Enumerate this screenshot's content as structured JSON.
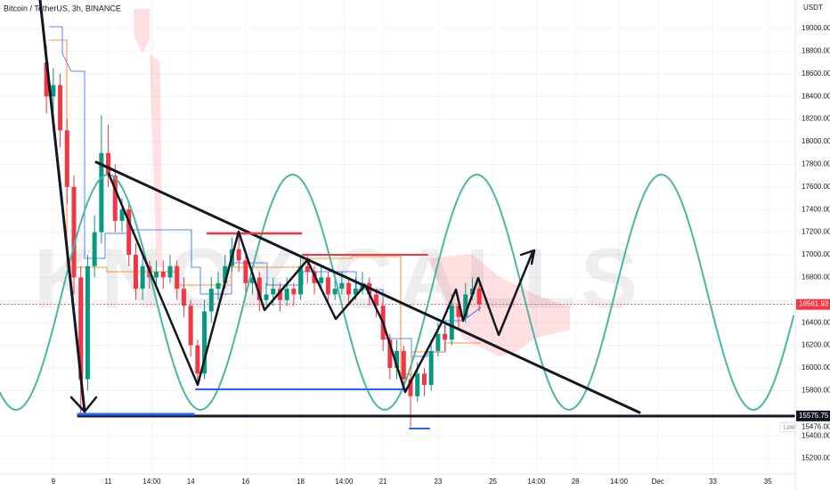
{
  "chart_data": {
    "type": "candlestick",
    "title": "Bitcoin / TetherUS, 3h, BINANCE",
    "watermark": "KNOX CALLS",
    "y_unit": "USDT",
    "up_color": "#089981",
    "down_color": "#f23645",
    "xlim": [
      7.06,
      36.0
    ],
    "ylim": [
      15063,
      19252
    ],
    "xticks": [
      9,
      11,
      {
        "value": 12.583,
        "label": "14:00"
      },
      14,
      16,
      18,
      {
        "value": 19.583,
        "label": "14:00"
      },
      21,
      23,
      25,
      {
        "value": 26.583,
        "label": "14:00"
      },
      28,
      {
        "value": 29.583,
        "label": "14:00"
      },
      {
        "value": 31,
        "label": "Dec"
      },
      33,
      35
    ],
    "yticks": [
      {
        "value": 19000,
        "label": "19000.00"
      },
      {
        "value": 18800,
        "label": "18800.00"
      },
      {
        "value": 18600,
        "label": "18600.00"
      },
      {
        "value": 18400,
        "label": "18400.00"
      },
      {
        "value": 18200,
        "label": "18200.00"
      },
      {
        "value": 18000,
        "label": "18000.00"
      },
      {
        "value": 17800,
        "label": "17800.00"
      },
      {
        "value": 17600,
        "label": "17600.00"
      },
      {
        "value": 17400,
        "label": "17400.00"
      },
      {
        "value": 17200,
        "label": "17200.00"
      },
      {
        "value": 17000,
        "label": "17000.00"
      },
      {
        "value": 16800,
        "label": "16800.00"
      },
      {
        "value": 16400,
        "label": "16400.00"
      },
      {
        "value": 16200,
        "label": "16200.00"
      },
      {
        "value": 16000,
        "label": "16000.00"
      },
      {
        "value": 15800,
        "label": "15800.00"
      },
      {
        "value": 15400,
        "label": "15400.00"
      },
      {
        "value": 15200,
        "label": "15200.00"
      }
    ],
    "last_price": {
      "value": 16561.93,
      "color": "#f23645"
    },
    "level_price": {
      "value": 15575.75,
      "color": "#131722"
    },
    "low_price": {
      "name": "Low",
      "value": 15476,
      "label": "15476.00",
      "color": "#2962ff"
    },
    "x": [
      8.75,
      9,
      9.25,
      9.5,
      9.75,
      10,
      10.25,
      10.5,
      10.75,
      11,
      11.25,
      11.5,
      11.75,
      12,
      12.25,
      12.5,
      12.75,
      13,
      13.25,
      13.5,
      13.75,
      14,
      14.25,
      14.5,
      14.75,
      15,
      15.25,
      15.5,
      15.75,
      16,
      16.25,
      16.5,
      16.75,
      17,
      17.25,
      17.5,
      17.75,
      18,
      18.25,
      18.5,
      18.75,
      19,
      19.25,
      19.5,
      19.75,
      20,
      20.25,
      20.5,
      20.75,
      21,
      21.25,
      21.5,
      21.75,
      22,
      22.25,
      22.5,
      22.75,
      23,
      23.25,
      23.5,
      23.75,
      24,
      24.25,
      24.5
    ],
    "open": [
      18700,
      18400,
      18500,
      18100,
      17600,
      16800,
      15900,
      16900,
      17200,
      17900,
      17700,
      17300,
      17400,
      17000,
      16700,
      16900,
      16800,
      16850,
      16800,
      16900,
      16700,
      16550,
      16200,
      15950,
      16500,
      16700,
      16750,
      16900,
      17050,
      16950,
      16750,
      16800,
      16600,
      16650,
      16700,
      16600,
      16700,
      16650,
      16900,
      16850,
      16750,
      16800,
      16650,
      16700,
      16750,
      16650,
      16700,
      16750,
      16650,
      16550,
      16250,
      16000,
      16150,
      15900,
      15750,
      15950,
      15850,
      16150,
      16300,
      16250,
      16550,
      16450,
      16650,
      16700
    ],
    "high": [
      18850,
      18650,
      18600,
      18200,
      17700,
      16900,
      17000,
      17350,
      18230,
      18150,
      17800,
      17500,
      17450,
      17100,
      17000,
      16950,
      16950,
      16950,
      17000,
      16950,
      16800,
      16600,
      16250,
      16600,
      16800,
      16850,
      17000,
      17150,
      17200,
      17000,
      16900,
      16850,
      16750,
      16800,
      16750,
      16800,
      16750,
      17000,
      17000,
      16900,
      16900,
      16850,
      16800,
      16850,
      16800,
      16800,
      16850,
      16800,
      16700,
      16600,
      16300,
      16250,
      16200,
      15950,
      16050,
      16000,
      16250,
      16400,
      16400,
      16650,
      16600,
      16750,
      16800,
      16750
    ],
    "low": [
      18250,
      18250,
      17950,
      17450,
      16650,
      15580,
      15800,
      16800,
      17100,
      17600,
      17200,
      17200,
      16900,
      16600,
      16600,
      16700,
      16700,
      16700,
      16750,
      16600,
      16450,
      16100,
      15870,
      15900,
      16400,
      16600,
      16700,
      16850,
      16850,
      16650,
      16650,
      16500,
      16550,
      16550,
      16500,
      16550,
      16550,
      16600,
      16750,
      16650,
      16700,
      16550,
      16600,
      16650,
      16550,
      16600,
      16650,
      16550,
      16450,
      16150,
      15900,
      15900,
      15800,
      15480,
      15700,
      15750,
      15800,
      16100,
      16150,
      16200,
      16350,
      16400,
      16600,
      16500
    ],
    "close": [
      18400,
      18500,
      18100,
      17600,
      16800,
      15900,
      16900,
      17200,
      17900,
      17700,
      17300,
      17400,
      17000,
      16700,
      16900,
      16800,
      16850,
      16800,
      16900,
      16700,
      16550,
      16200,
      15950,
      16500,
      16700,
      16750,
      16900,
      17050,
      16950,
      16750,
      16800,
      16600,
      16650,
      16700,
      16600,
      16700,
      16650,
      16900,
      16850,
      16750,
      16800,
      16650,
      16700,
      16750,
      16650,
      16700,
      16750,
      16650,
      16550,
      16250,
      16000,
      16150,
      15900,
      15750,
      15950,
      15850,
      16150,
      16300,
      16250,
      16550,
      16450,
      16650,
      16700,
      16562
    ]
  }
}
